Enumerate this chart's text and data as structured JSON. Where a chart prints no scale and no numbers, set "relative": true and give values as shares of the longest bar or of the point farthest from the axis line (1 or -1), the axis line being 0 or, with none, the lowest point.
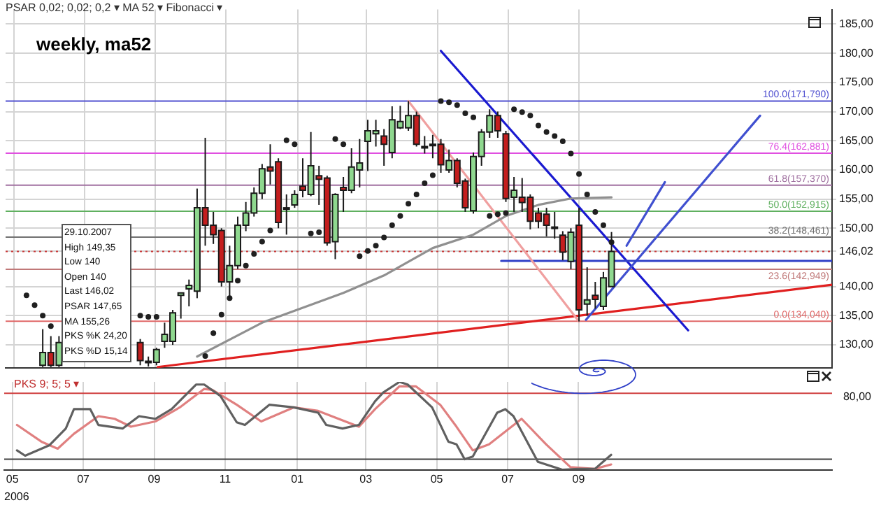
{
  "chart_data": [
    {
      "type": "candlestick",
      "title": "weekly, ma52",
      "subtitle": "PSAR 0,02; 0,02; 0,2 ▾   MA 52 ▾   Fibonacci ▾",
      "annotations": [
        "29.10.2007",
        "High 149,35",
        "Low 140",
        "Open 140",
        "Last 146,02",
        "PSAR 147,65",
        "MA 155,26",
        "PKS %K 24,20",
        "PKS %D 15,14"
      ],
      "x": [
        "2006-06-26",
        "2006-07-03",
        "2006-07-10",
        "2006-09-18",
        "2006-09-25",
        "2006-10-02",
        "2006-10-09",
        "2006-10-16",
        "2006-10-23",
        "2006-10-30",
        "2006-11-06",
        "2006-11-13",
        "2006-11-20",
        "2006-11-27",
        "2006-12-04",
        "2006-12-11",
        "2006-12-18",
        "2006-12-25",
        "2007-01-01",
        "2007-01-08",
        "2007-01-15",
        "2007-01-22",
        "2007-01-29",
        "2007-02-05",
        "2007-02-12",
        "2007-02-19",
        "2007-02-26",
        "2007-03-05",
        "2007-03-12",
        "2007-03-19",
        "2007-03-26",
        "2007-04-02",
        "2007-04-09",
        "2007-04-16",
        "2007-04-23",
        "2007-04-30",
        "2007-05-07",
        "2007-05-14",
        "2007-05-21",
        "2007-05-28",
        "2007-06-04",
        "2007-06-11",
        "2007-06-18",
        "2007-06-25",
        "2007-07-02",
        "2007-07-09",
        "2007-07-16",
        "2007-07-23",
        "2007-07-30",
        "2007-08-06",
        "2007-08-13",
        "2007-08-20",
        "2007-08-27",
        "2007-09-03",
        "2007-09-10",
        "2007-09-17",
        "2007-09-24",
        "2007-10-01",
        "2007-10-08",
        "2007-10-15",
        "2007-10-22",
        "2007-10-29"
      ],
      "ohlc": [
        [
          126.5,
          132.7,
          126.2,
          128.7
        ],
        [
          128.7,
          131.5,
          126.2,
          126.5
        ],
        [
          126.5,
          131.5,
          126.2,
          130.4
        ],
        [
          130.4,
          131,
          126.5,
          127.3
        ],
        [
          127.2,
          128,
          126.3,
          127
        ],
        [
          127,
          129.5,
          126.5,
          129.2
        ],
        [
          130.6,
          133.8,
          129.5,
          131.8
        ],
        [
          130.6,
          136,
          130,
          135.5
        ],
        [
          138.5,
          139,
          134.5,
          138.9
        ],
        [
          139.6,
          141.2,
          136.6,
          140.2
        ],
        [
          139.2,
          156.8,
          138,
          153.5
        ],
        [
          153.5,
          165.5,
          147,
          150.5
        ],
        [
          150.5,
          152.8,
          147.3,
          148.9
        ],
        [
          149.6,
          150,
          140,
          140.8
        ],
        [
          140.8,
          147,
          138,
          143.6
        ],
        [
          143.6,
          152,
          143,
          150.5
        ],
        [
          150.5,
          154.5,
          149.5,
          152.6
        ],
        [
          152.6,
          157,
          152,
          156
        ],
        [
          156,
          161,
          155,
          160.2
        ],
        [
          160.5,
          164.4,
          157.5,
          159.8
        ],
        [
          161.4,
          162,
          150,
          151
        ],
        [
          153.3,
          155.8,
          148.9,
          153.5
        ],
        [
          154,
          156.5,
          153.5,
          155.8
        ],
        [
          157.2,
          162,
          155.3,
          156.5
        ],
        [
          155.8,
          166.5,
          155.5,
          160.7
        ],
        [
          159,
          160.7,
          154,
          158.4
        ],
        [
          158.6,
          159,
          147,
          147.5
        ],
        [
          147.7,
          156,
          144.7,
          155.8
        ],
        [
          157,
          158.8,
          152.8,
          156.5
        ],
        [
          156.5,
          163.7,
          156,
          160.5
        ],
        [
          160,
          165.3,
          157,
          161.2
        ],
        [
          164.9,
          168.6,
          159.8,
          166.7
        ],
        [
          166.2,
          168.6,
          164,
          166.7
        ],
        [
          165.8,
          167,
          160.7,
          164.4
        ],
        [
          163,
          170.9,
          162,
          168.6
        ],
        [
          167.2,
          171,
          167,
          168.3
        ],
        [
          167.2,
          171.8,
          166.7,
          169.3
        ],
        [
          169.3,
          170,
          164,
          164.4
        ],
        [
          164,
          165.8,
          162.8,
          163.8
        ],
        [
          164.4,
          166,
          162,
          164.2
        ],
        [
          164.4,
          165.3,
          159.5,
          160.9
        ],
        [
          160,
          163.5,
          159.5,
          161.6
        ],
        [
          161.6,
          162,
          157,
          157.7
        ],
        [
          158.1,
          158.5,
          152.8,
          153.5
        ],
        [
          153,
          163,
          152.5,
          162.3
        ],
        [
          162.3,
          167,
          160.7,
          166.5
        ],
        [
          166.5,
          170.4,
          165.5,
          169.3
        ],
        [
          169.3,
          170,
          165.5,
          166.7
        ],
        [
          166.2,
          166.7,
          154.5,
          155.1
        ],
        [
          155.3,
          158.8,
          152.8,
          156.5
        ],
        [
          155.3,
          158.6,
          152.8,
          154.4
        ],
        [
          155.3,
          155.8,
          149.8,
          151.2
        ],
        [
          152.6,
          153.5,
          150,
          151.2
        ],
        [
          152.4,
          153.5,
          148.6,
          150.5
        ],
        [
          150.2,
          152.8,
          148.2,
          150
        ],
        [
          148.8,
          149.5,
          144.5,
          145.9
        ],
        [
          144.3,
          150,
          143,
          149.3
        ],
        [
          150.5,
          153.5,
          134,
          136
        ],
        [
          137,
          143.3,
          135,
          137.7
        ],
        [
          138.5,
          140.8,
          136.2,
          137.8
        ],
        [
          136.6,
          142.5,
          136,
          141.5
        ],
        [
          140,
          149.35,
          140,
          146.02
        ]
      ],
      "colors": [
        "#8fd88f",
        "#c41e1e",
        "#8fd88f",
        "#c41e1e",
        "#c41e1e",
        "#8fd88f",
        "#8fd88f",
        "#8fd88f",
        "#8fd88f",
        "#8fd88f",
        "#8fd88f",
        "#c41e1e",
        "#c41e1e",
        "#c41e1e",
        "#8fd88f",
        "#8fd88f",
        "#8fd88f",
        "#8fd88f",
        "#8fd88f",
        "#c41e1e",
        "#c41e1e",
        "#8fd88f",
        "#8fd88f",
        "#c41e1e",
        "#8fd88f",
        "#c41e1e",
        "#c41e1e",
        "#8fd88f",
        "#c41e1e",
        "#8fd88f",
        "#8fd88f",
        "#8fd88f",
        "#8fd88f",
        "#c41e1e",
        "#8fd88f",
        "#8fd88f",
        "#8fd88f",
        "#c41e1e",
        "#c41e1e",
        "#c41e1e",
        "#c41e1e",
        "#8fd88f",
        "#c41e1e",
        "#c41e1e",
        "#8fd88f",
        "#8fd88f",
        "#8fd88f",
        "#c41e1e",
        "#c41e1e",
        "#8fd88f",
        "#c41e1e",
        "#c41e1e",
        "#c41e1e",
        "#c41e1e",
        "#c41e1e",
        "#c41e1e",
        "#8fd88f",
        "#c41e1e",
        "#8fd88f",
        "#c41e1e",
        "#8fd88f",
        "#8fd88f"
      ],
      "series": [
        {
          "type": "scatter",
          "marker": "circle",
          "color": "#202020",
          "x": [
            "2006-06-12",
            "2006-06-19",
            "2006-06-26",
            "2006-07-03",
            "2006-09-18",
            "2006-09-25",
            "2006-10-02",
            "2006-11-13",
            "2006-11-20",
            "2006-11-27",
            "2006-12-04",
            "2006-12-11",
            "2006-12-18",
            "2006-12-25",
            "2007-01-01",
            "2007-01-08",
            "2007-01-22",
            "2007-01-29",
            "2007-02-12",
            "2007-02-19",
            "2007-03-05",
            "2007-03-12",
            "2007-03-26",
            "2007-04-02",
            "2007-04-09",
            "2007-04-16",
            "2007-04-23",
            "2007-04-30",
            "2007-05-07",
            "2007-05-14",
            "2007-05-21",
            "2007-05-28",
            "2007-06-04",
            "2007-06-11",
            "2007-06-18",
            "2007-06-25",
            "2007-07-02",
            "2007-07-16",
            "2007-07-23",
            "2007-07-30",
            "2007-08-06",
            "2007-08-13",
            "2007-08-20",
            "2007-08-27",
            "2007-09-03",
            "2007-09-10",
            "2007-09-17",
            "2007-09-24",
            "2007-10-01",
            "2007-10-08",
            "2007-10-15",
            "2007-10-22",
            "2007-10-29"
          ],
          "values": [
            138.5,
            136.8,
            135,
            133.2,
            135,
            134.8,
            134.8,
            128.1,
            132,
            135.2,
            138,
            141,
            143.6,
            145.6,
            147.7,
            149.6,
            165.1,
            164.4,
            149.1,
            149.3,
            165.3,
            164.4,
            145.2,
            146.1,
            147,
            148.4,
            150.5,
            152.1,
            154.2,
            155.8,
            157.7,
            159.1,
            171.8,
            171.6,
            171.1,
            169.7,
            169,
            152.1,
            152.4,
            152.6,
            170.4,
            169.9,
            169.3,
            167.6,
            166.5,
            165.8,
            164.9,
            162.8,
            159.3,
            155.8,
            152.8,
            150.5,
            147.6
          ]
        },
        {
          "type": "line",
          "color": "#909090",
          "x": [
            "2006-11-06",
            "2007-01-01",
            "2007-03-12",
            "2007-04-16",
            "2007-05-28",
            "2007-07-02",
            "2007-07-30",
            "2007-08-27",
            "2007-09-24",
            "2007-10-29"
          ],
          "values": [
            128,
            133.8,
            138.9,
            141.9,
            146.6,
            148.9,
            152.1,
            154,
            155.1,
            155.3
          ]
        },
        {
          "type": "line",
          "color": "#f0a0a0",
          "x": [
            "2007-05-07",
            "2007-10-01"
          ],
          "values": [
            171.8,
            134
          ]
        },
        {
          "type": "line",
          "color": "#3040c8",
          "x": [
            "2007-07-26",
            "2008-05-06"
          ],
          "values": [
            144.4,
            144.4
          ]
        },
        {
          "type": "line",
          "color": "#4050d0",
          "x": [
            "2007-10-07",
            "2008-03-05"
          ],
          "values": [
            134.3,
            169.3
          ]
        },
        {
          "type": "line",
          "color": "#4050d0",
          "x": [
            "2007-11-11",
            "2007-12-14"
          ],
          "values": [
            147,
            157.9
          ]
        },
        {
          "type": "line",
          "color": "#1a1ad0",
          "x": [
            "2007-06-04",
            "2008-01-03"
          ],
          "values": [
            180.4,
            132.5
          ]
        },
        {
          "type": "line",
          "color": "#e02020",
          "x": [
            "2006-10-03",
            "2008-05-06"
          ],
          "values": [
            126.2,
            140.3
          ]
        }
      ],
      "ref_lines": [
        {
          "axis": "y",
          "value": 171.79,
          "label": "100.0(171,790)",
          "color": "#5050d0"
        },
        {
          "axis": "y",
          "value": 162.881,
          "label": "76.4(162,881)",
          "color": "#e050e0"
        },
        {
          "axis": "y",
          "value": 157.37,
          "label": "61.8(157,370)",
          "color": "#a070a0"
        },
        {
          "axis": "y",
          "value": 152.915,
          "label": "50.0(152,915)",
          "color": "#60b060"
        },
        {
          "axis": "y",
          "value": 148.461,
          "label": "38.2(148,461)",
          "color": "#707070"
        },
        {
          "axis": "y",
          "value": 142.949,
          "label": "23.6(142,949)",
          "color": "#c07878"
        },
        {
          "axis": "y",
          "value": 134.04,
          "label": "0.0(134,040)",
          "color": "#e06868"
        },
        {
          "axis": "y",
          "value": 146.02,
          "color": "#c83838",
          "line_style": "dotted"
        }
      ],
      "xlim": [
        "2006-05-25",
        "2008-05-06"
      ],
      "xticks": [
        {
          "value": "2006-06-01",
          "label": null
        },
        {
          "value": "2006-08-01",
          "label": null
        },
        {
          "value": "2006-10-01",
          "label": null
        },
        {
          "value": "2006-12-01",
          "label": null
        },
        {
          "value": "2007-02-01",
          "label": null
        },
        {
          "value": "2007-04-01",
          "label": null
        },
        {
          "value": "2007-06-01",
          "label": null
        },
        {
          "value": "2007-08-01",
          "label": null
        },
        {
          "value": "2007-10-01",
          "label": null
        }
      ],
      "ylim": [
        126,
        187.5
      ],
      "yticks": [
        {
          "value": 130,
          "label": "130,00"
        },
        {
          "value": 135,
          "label": "135,00"
        },
        {
          "value": 140,
          "label": "140,00"
        },
        {
          "value": 146.02,
          "label": "146,02"
        },
        {
          "value": 150,
          "label": "150,00"
        },
        {
          "value": 155,
          "label": "155,00"
        },
        {
          "value": 160,
          "label": "160,00"
        },
        {
          "value": 165,
          "label": "165,00"
        },
        {
          "value": 170,
          "label": "170,00"
        },
        {
          "value": 175,
          "label": "175,00"
        },
        {
          "value": 180,
          "label": "180,00"
        },
        {
          "value": 185,
          "label": "185,00"
        }
      ],
      "tick_labels": "y",
      "grid": true
    },
    {
      "type": "line",
      "title": "PKS 9; 5; 5 ▾",
      "xlabel": "2006",
      "relative": true,
      "annotations": [
        "80,00"
      ],
      "series": [
        {
          "color": "#606060",
          "x": [
            "2006-06-05",
            "2006-06-12",
            "2006-07-03",
            "2006-07-17",
            "2006-07-24",
            "2006-08-07",
            "2006-08-14",
            "2006-09-04",
            "2006-09-18",
            "2006-10-02",
            "2006-10-16",
            "2006-11-06",
            "2006-11-13",
            "2006-11-27",
            "2006-12-11",
            "2006-12-18",
            "2007-01-08",
            "2007-01-29",
            "2007-02-19",
            "2007-02-26",
            "2007-03-12",
            "2007-03-26",
            "2007-04-09",
            "2007-04-16",
            "2007-04-30",
            "2007-05-07",
            "2007-05-28",
            "2007-06-11",
            "2007-06-18",
            "2007-06-25",
            "2007-07-02",
            "2007-07-23",
            "2007-07-30",
            "2007-08-06",
            "2007-08-27",
            "2007-09-17",
            "2007-10-01",
            "2007-10-15",
            "2007-10-29"
          ],
          "values": [
            0.22,
            0.16,
            0.28,
            0.47,
            0.69,
            0.69,
            0.51,
            0.47,
            0.61,
            0.58,
            0.69,
            0.97,
            0.97,
            0.84,
            0.54,
            0.51,
            0.74,
            0.71,
            0.65,
            0.51,
            0.47,
            0.51,
            0.78,
            0.88,
            1,
            0.97,
            0.71,
            0.32,
            0.29,
            0.12,
            0.15,
            0.65,
            0.69,
            0.61,
            0.09,
            0,
            0.01,
            0.01,
            0.17
          ]
        },
        {
          "color": "#e08080",
          "x": [
            "2006-06-05",
            "2006-06-26",
            "2006-07-10",
            "2006-07-24",
            "2006-08-14",
            "2006-08-28",
            "2006-09-11",
            "2006-10-02",
            "2006-10-23",
            "2006-11-13",
            "2006-11-20",
            "2006-12-11",
            "2007-01-01",
            "2007-01-29",
            "2007-02-19",
            "2007-03-26",
            "2007-04-09",
            "2007-04-30",
            "2007-05-14",
            "2007-06-04",
            "2007-06-18",
            "2007-07-02",
            "2007-07-16",
            "2007-08-13",
            "2007-09-03",
            "2007-09-24",
            "2007-10-15",
            "2007-10-29"
          ],
          "values": [
            0.51,
            0.32,
            0.24,
            0.41,
            0.61,
            0.58,
            0.49,
            0.55,
            0.71,
            0.92,
            0.91,
            0.74,
            0.55,
            0.71,
            0.67,
            0.49,
            0.69,
            0.95,
            0.95,
            0.74,
            0.49,
            0.22,
            0.29,
            0.58,
            0.29,
            0.03,
            0.01,
            0.06
          ]
        }
      ],
      "ref_lines": [
        {
          "axis": "y",
          "value": 0.87,
          "color": "#d04040"
        },
        {
          "axis": "y",
          "value": 0.12,
          "color": "#404040"
        }
      ],
      "xlim": [
        "2006-05-25",
        "2008-05-06"
      ],
      "xticks": [
        {
          "value": "2006-06-01",
          "label": "05"
        },
        {
          "value": "2006-08-01",
          "label": "07"
        },
        {
          "value": "2006-10-01",
          "label": "09"
        },
        {
          "value": "2006-12-01",
          "label": "11"
        },
        {
          "value": "2007-02-01",
          "label": "01"
        },
        {
          "value": "2007-04-01",
          "label": "03"
        },
        {
          "value": "2007-06-01",
          "label": "05"
        },
        {
          "value": "2007-08-01",
          "label": "07"
        },
        {
          "value": "2007-10-01",
          "label": "09"
        }
      ],
      "grid": "x"
    }
  ]
}
